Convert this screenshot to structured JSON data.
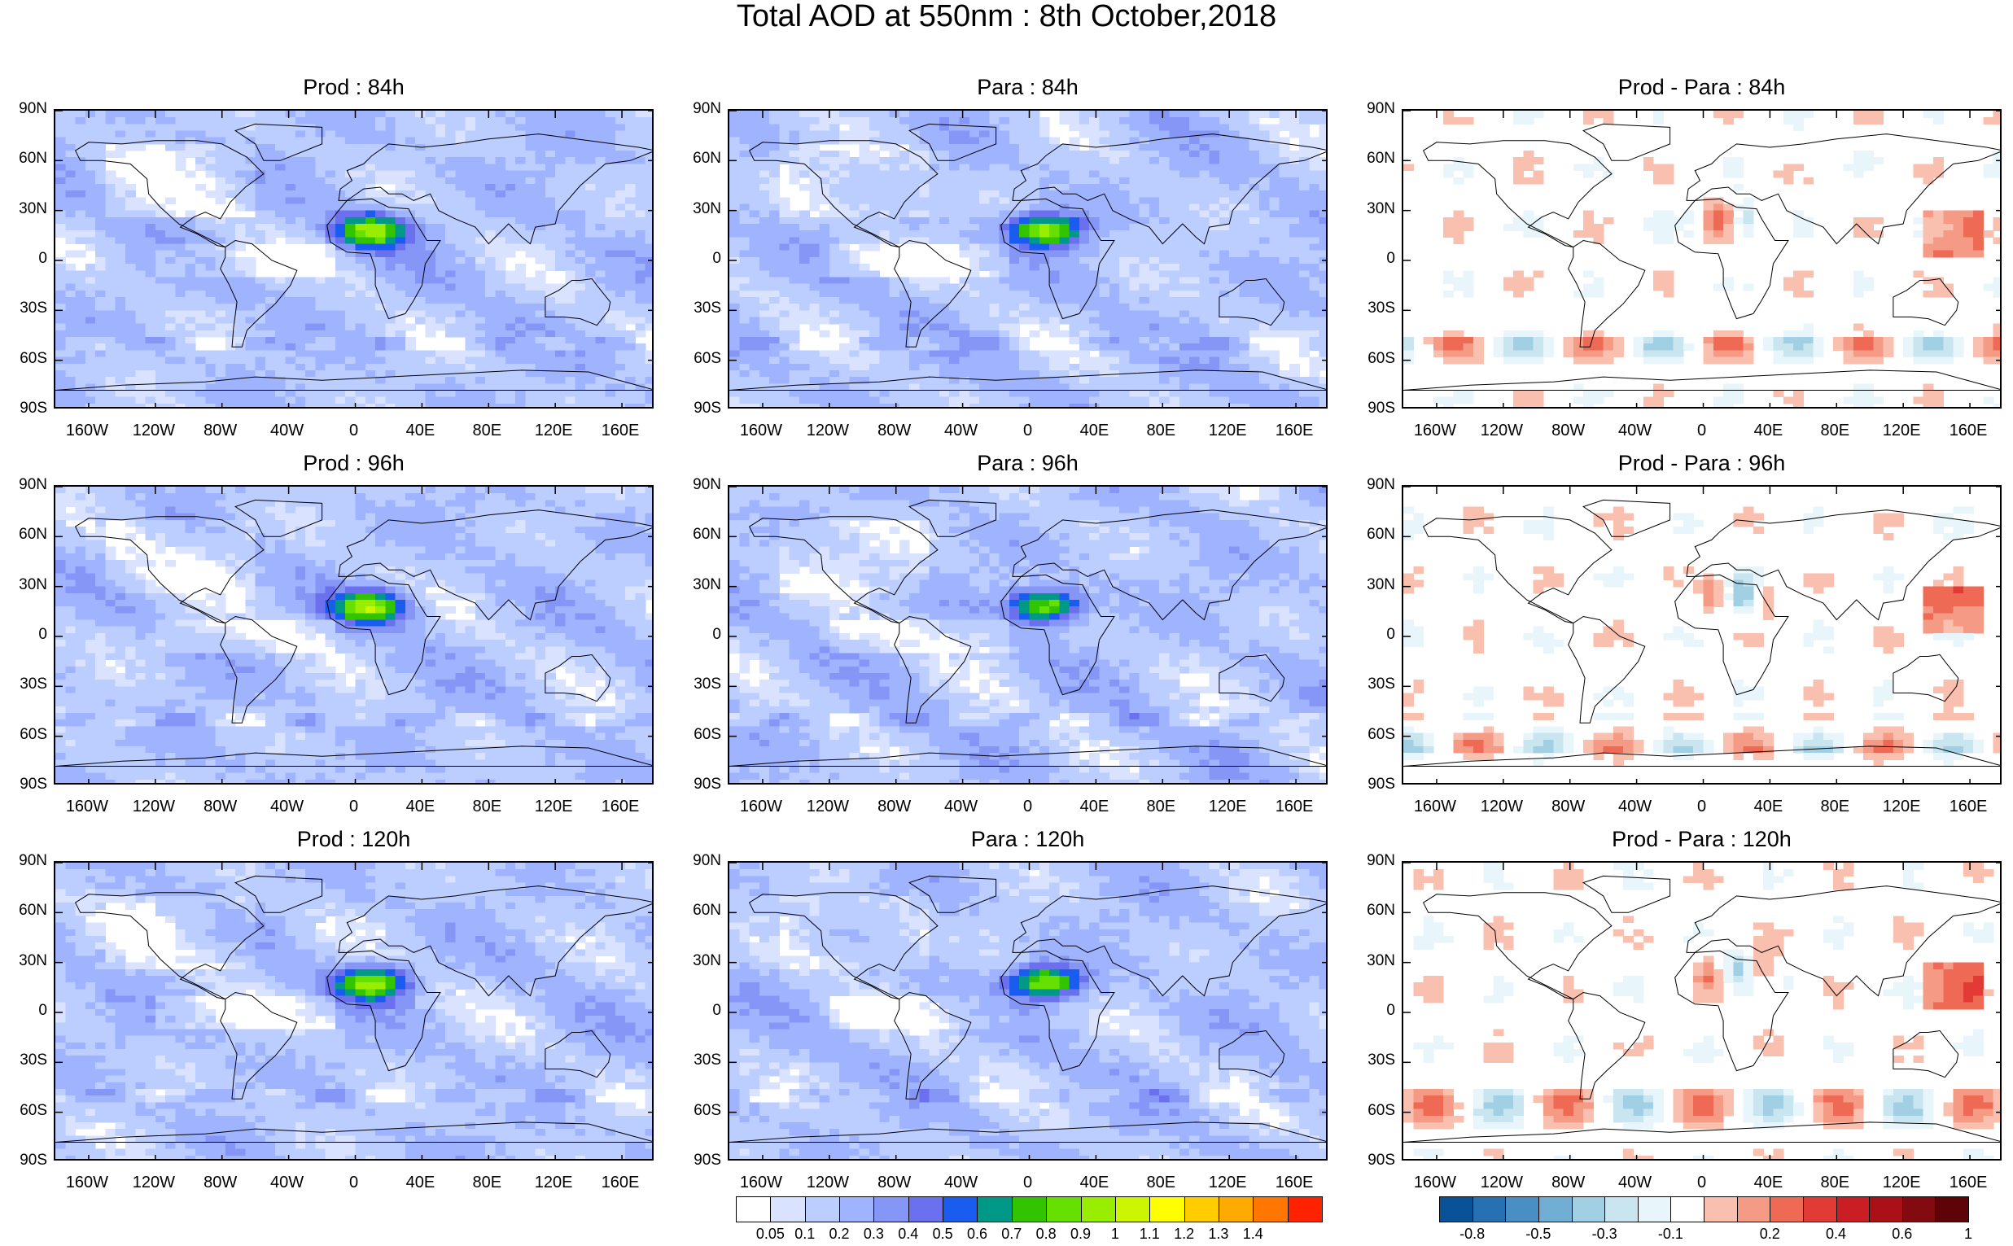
{
  "title": "Total AOD at 550nm : 8th October,2018",
  "lat_labels": [
    "90N",
    "60N",
    "30N",
    "0",
    "30S",
    "60S",
    "90S"
  ],
  "lon_labels": [
    "160W",
    "120W",
    "80W",
    "40W",
    "0",
    "40E",
    "80E",
    "120E",
    "160E"
  ],
  "panels": [
    {
      "title": "Prod : 84h",
      "kind": "aod",
      "variant": 0
    },
    {
      "title": "Para : 84h",
      "kind": "aod",
      "variant": 1
    },
    {
      "title": "Prod - Para : 84h",
      "kind": "diff",
      "variant": 2
    },
    {
      "title": "Prod : 96h",
      "kind": "aod",
      "variant": 3
    },
    {
      "title": "Para : 96h",
      "kind": "aod",
      "variant": 4
    },
    {
      "title": "Prod - Para : 96h",
      "kind": "diff",
      "variant": 5
    },
    {
      "title": "Prod : 120h",
      "kind": "aod",
      "variant": 6
    },
    {
      "title": "Para : 120h",
      "kind": "aod",
      "variant": 7
    },
    {
      "title": "Prod - Para : 120h",
      "kind": "diff",
      "variant": 8
    }
  ],
  "colorbar_aod": {
    "labels": [
      "0.05",
      "0.1",
      "0.2",
      "0.3",
      "0.4",
      "0.5",
      "0.6",
      "0.7",
      "0.8",
      "0.9",
      "1",
      "1.1",
      "1.2",
      "1.3",
      "1.4"
    ],
    "colors": [
      "#ffffff",
      "#d9e3ff",
      "#bccdff",
      "#9fb3ff",
      "#8596f7",
      "#6b70ef",
      "#1a5bf0",
      "#009988",
      "#33c400",
      "#66e000",
      "#99ee00",
      "#ccf500",
      "#ffff00",
      "#ffcc00",
      "#ffaa00",
      "#ff7700",
      "#ff2200"
    ]
  },
  "colorbar_diff": {
    "labels": [
      "-0.8",
      "-0.5",
      "-0.3",
      "-0.1",
      "0.2",
      "0.4",
      "0.6",
      "1"
    ],
    "colors": [
      "#0a5297",
      "#2770b1",
      "#4a8fc4",
      "#71aed3",
      "#a1cfe3",
      "#c9e6f0",
      "#e8f5fa",
      "#ffffff",
      "#f9c0b0",
      "#f59a84",
      "#ee6a55",
      "#e23b35",
      "#cb1e24",
      "#aa1017",
      "#830a10",
      "#5e0308"
    ]
  }
}
